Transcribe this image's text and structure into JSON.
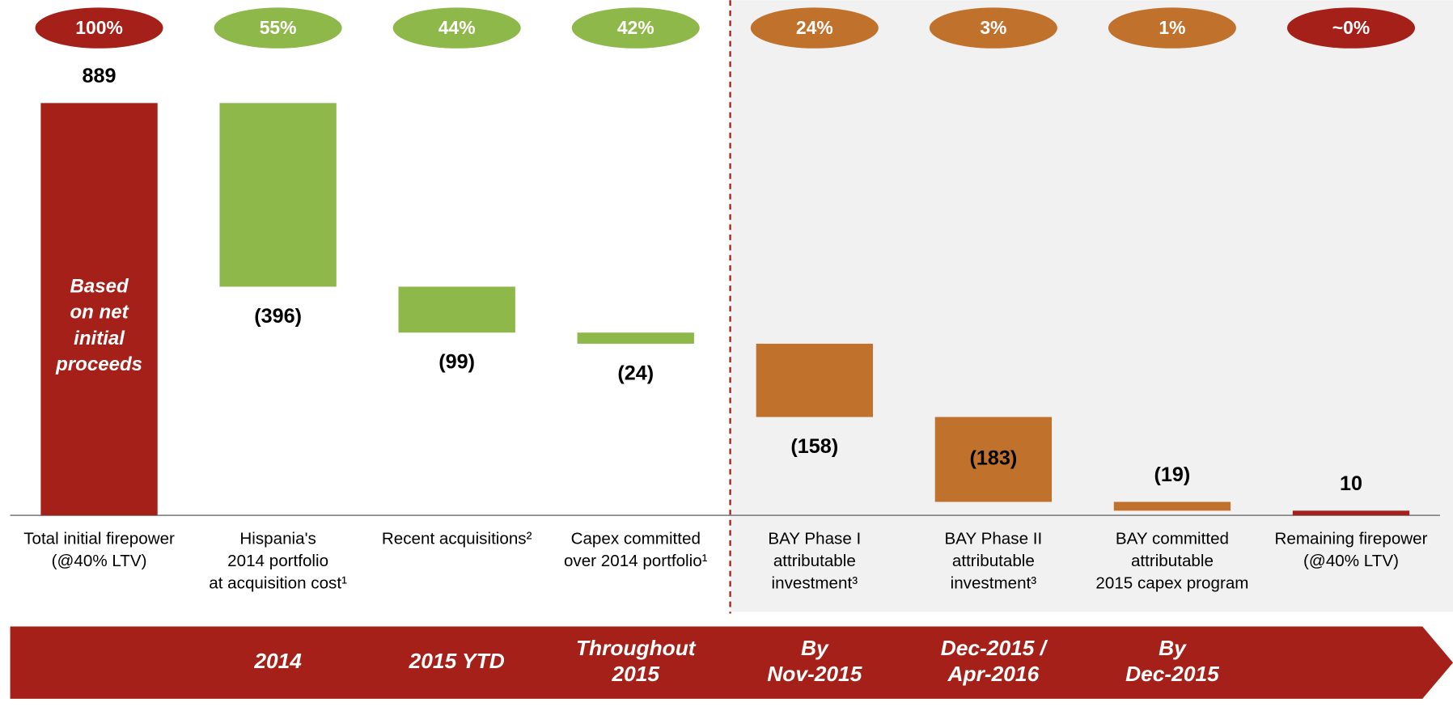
{
  "chart_data": {
    "type": "waterfall",
    "categories": [
      [
        "Total initial firepower",
        "(@40% LTV)"
      ],
      [
        "Hispania's",
        "2014 portfolio",
        "at acquisition cost¹"
      ],
      [
        "Recent acquisitions²"
      ],
      [
        "Capex committed",
        "over 2014 portfolio¹"
      ],
      [
        "BAY Phase I",
        "attributable",
        "investment³"
      ],
      [
        "BAY Phase II",
        "attributable",
        "investment³"
      ],
      [
        "BAY committed",
        "attributable",
        "2015 capex program"
      ],
      [
        "Remaining firepower",
        "(@40% LTV)"
      ]
    ],
    "values": [
      889,
      -396,
      -99,
      -24,
      -158,
      -183,
      -19,
      10
    ],
    "value_labels": [
      "889",
      "(396)",
      "(99)",
      "(24)",
      "(158)",
      "(183)",
      "(19)",
      "10"
    ],
    "total_indices": [
      0,
      7
    ],
    "colors": [
      "#a52018",
      "#8fb84a",
      "#8fb84a",
      "#8fb84a",
      "#c0712c",
      "#c0712c",
      "#c0712c",
      "#a52018"
    ],
    "percent_labels": [
      "100%",
      "55%",
      "44%",
      "42%",
      "24%",
      "3%",
      "1%",
      "~0%"
    ],
    "bar_annotation": [
      "Based",
      "on net",
      "initial",
      "proceeds"
    ],
    "timeline": [
      null,
      [
        "2014"
      ],
      [
        "2015 YTD"
      ],
      [
        "Throughout",
        "2015"
      ],
      [
        "By",
        "Nov-2015"
      ],
      [
        "Dec-2015 /",
        "Apr-2016"
      ],
      [
        "By",
        "Dec-2015"
      ],
      null
    ]
  }
}
